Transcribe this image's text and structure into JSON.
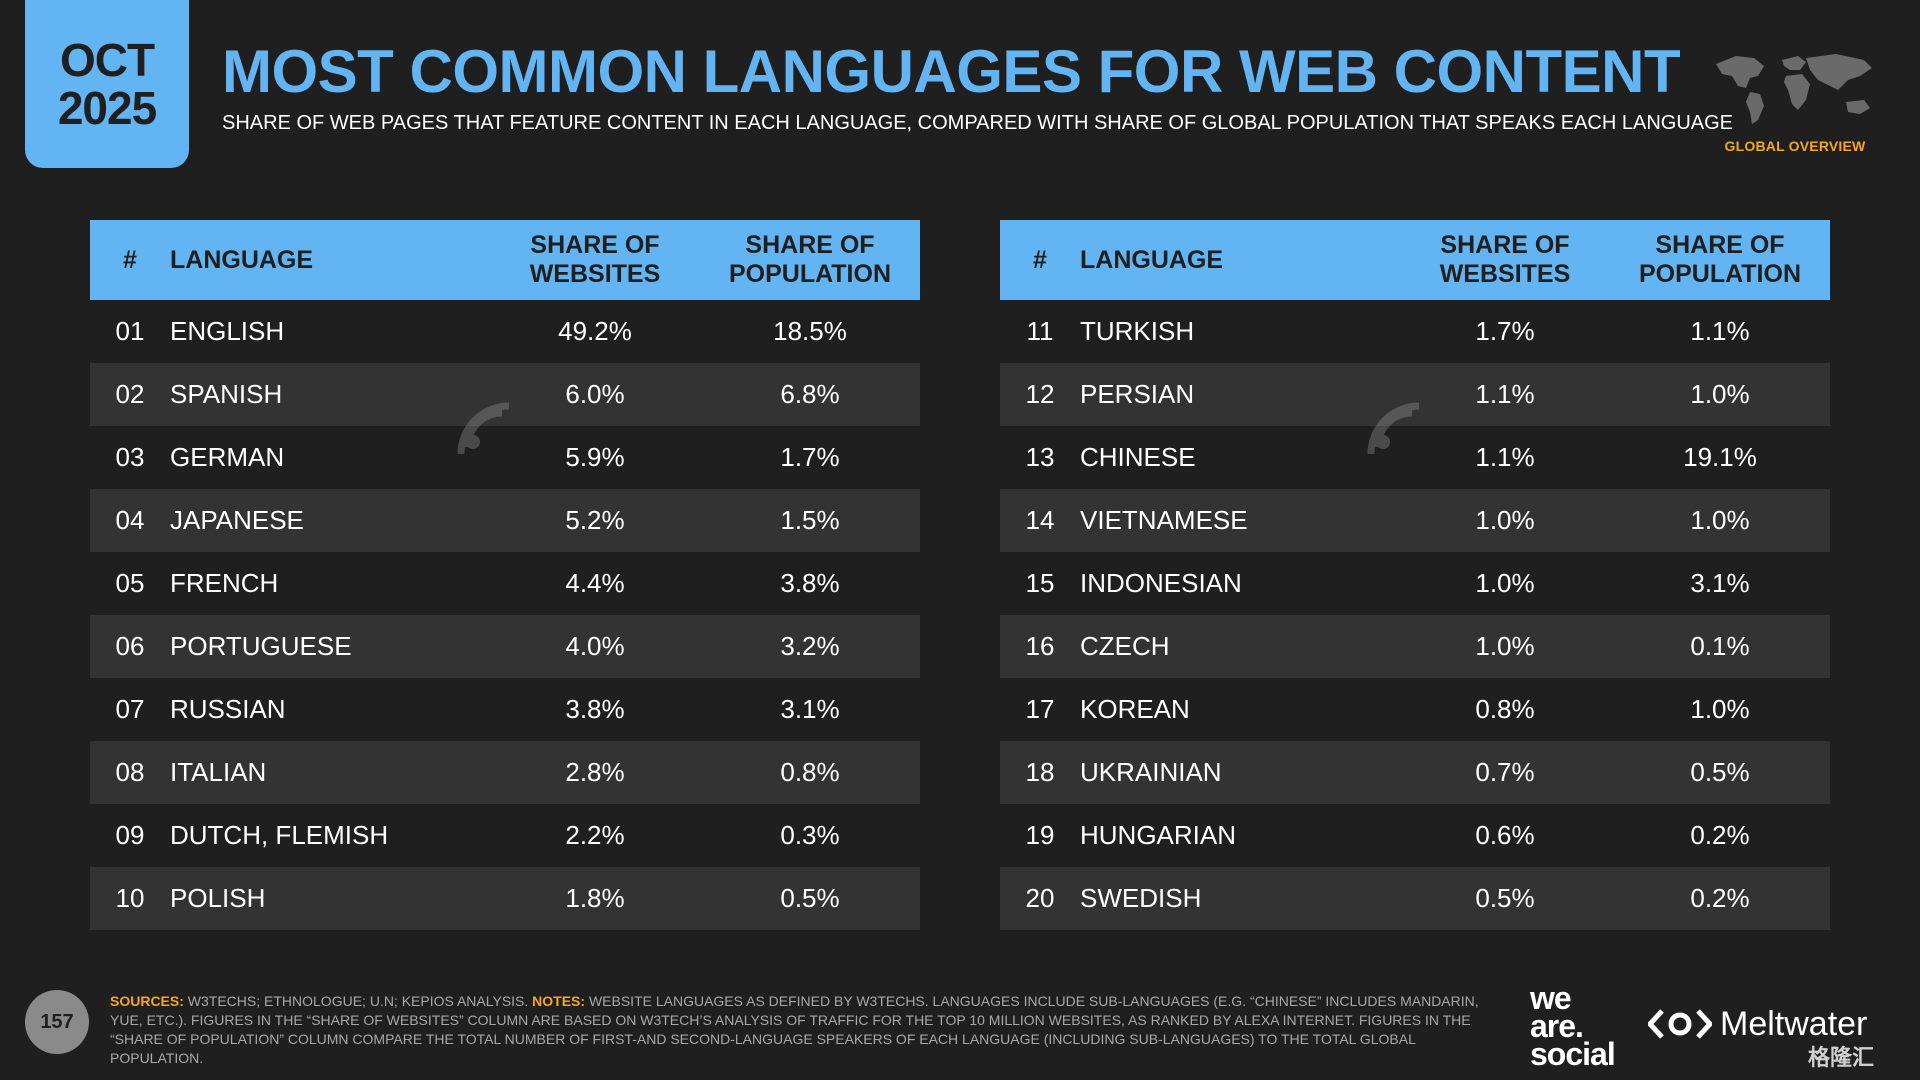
{
  "header": {
    "month": "OCT",
    "year": "2025",
    "title": "MOST COMMON LANGUAGES FOR WEB CONTENT",
    "subtitle": "SHARE OF WEB PAGES THAT FEATURE CONTENT IN EACH LANGUAGE, COMPARED WITH SHARE OF GLOBAL POPULATION THAT SPEAKS EACH LANGUAGE",
    "section_label": "GLOBAL OVERVIEW"
  },
  "columns": {
    "num": "#",
    "language": "LANGUAGE",
    "websites_line1": "SHARE OF",
    "websites_line2": "WEBSITES",
    "population_line1": "SHARE OF",
    "population_line2": "POPULATION"
  },
  "left_rows": [
    {
      "num": "01",
      "language": "ENGLISH",
      "websites": "49.2%",
      "population": "18.5%"
    },
    {
      "num": "02",
      "language": "SPANISH",
      "websites": "6.0%",
      "population": "6.8%"
    },
    {
      "num": "03",
      "language": "GERMAN",
      "websites": "5.9%",
      "population": "1.7%"
    },
    {
      "num": "04",
      "language": "JAPANESE",
      "websites": "5.2%",
      "population": "1.5%"
    },
    {
      "num": "05",
      "language": "FRENCH",
      "websites": "4.4%",
      "population": "3.8%"
    },
    {
      "num": "06",
      "language": "PORTUGUESE",
      "websites": "4.0%",
      "population": "3.2%"
    },
    {
      "num": "07",
      "language": "RUSSIAN",
      "websites": "3.8%",
      "population": "3.1%"
    },
    {
      "num": "08",
      "language": "ITALIAN",
      "websites": "2.8%",
      "population": "0.8%"
    },
    {
      "num": "09",
      "language": "DUTCH, FLEMISH",
      "websites": "2.2%",
      "population": "0.3%"
    },
    {
      "num": "10",
      "language": "POLISH",
      "websites": "1.8%",
      "population": "0.5%"
    }
  ],
  "right_rows": [
    {
      "num": "11",
      "language": "TURKISH",
      "websites": "1.7%",
      "population": "1.1%"
    },
    {
      "num": "12",
      "language": "PERSIAN",
      "websites": "1.1%",
      "population": "1.0%"
    },
    {
      "num": "13",
      "language": "CHINESE",
      "websites": "1.1%",
      "population": "19.1%"
    },
    {
      "num": "14",
      "language": "VIETNAMESE",
      "websites": "1.0%",
      "population": "1.0%"
    },
    {
      "num": "15",
      "language": "INDONESIAN",
      "websites": "1.0%",
      "population": "3.1%"
    },
    {
      "num": "16",
      "language": "CZECH",
      "websites": "1.0%",
      "population": "0.1%"
    },
    {
      "num": "17",
      "language": "KOREAN",
      "websites": "0.8%",
      "population": "1.0%"
    },
    {
      "num": "18",
      "language": "UKRAINIAN",
      "websites": "0.7%",
      "population": "0.5%"
    },
    {
      "num": "19",
      "language": "HUNGARIAN",
      "websites": "0.6%",
      "population": "0.2%"
    },
    {
      "num": "20",
      "language": "SWEDISH",
      "websites": "0.5%",
      "population": "0.2%"
    }
  ],
  "footer": {
    "page_number": "157",
    "sources_label": "SOURCES:",
    "sources_text": "W3TECHS; ETHNOLOGUE; U.N; KEPIOS ANALYSIS.",
    "notes_label": "NOTES:",
    "notes_text": "WEBSITE LANGUAGES AS DEFINED BY W3TECHS. LANGUAGES INCLUDE SUB-LANGUAGES (E.G. “CHINESE” INCLUDES MANDARIN, YUE, ETC.). FIGURES IN THE “SHARE OF WEBSITES” COLUMN ARE BASED ON W3TECH’S ANALYSIS OF TRAFFIC FOR THE TOP 10 MILLION WEBSITES, AS RANKED BY ALEXA INTERNET. FIGURES IN THE “SHARE OF POPULATION” COLUMN COMPARE THE TOTAL NUMBER OF FIRST-AND SECOND-LANGUAGE SPEAKERS OF EACH LANGUAGE (INCLUDING SUB-LANGUAGES) TO THE TOTAL GLOBAL POPULATION.",
    "brand1_line1": "we",
    "brand1_line2": "are.",
    "brand1_line3": "social",
    "brand2": "Meltwater",
    "watermark_text": "格隆汇"
  },
  "colors": {
    "accent": "#62b4f2",
    "background": "#1f1f1f",
    "row_alt": "#333333",
    "label_orange": "#f5a623"
  }
}
